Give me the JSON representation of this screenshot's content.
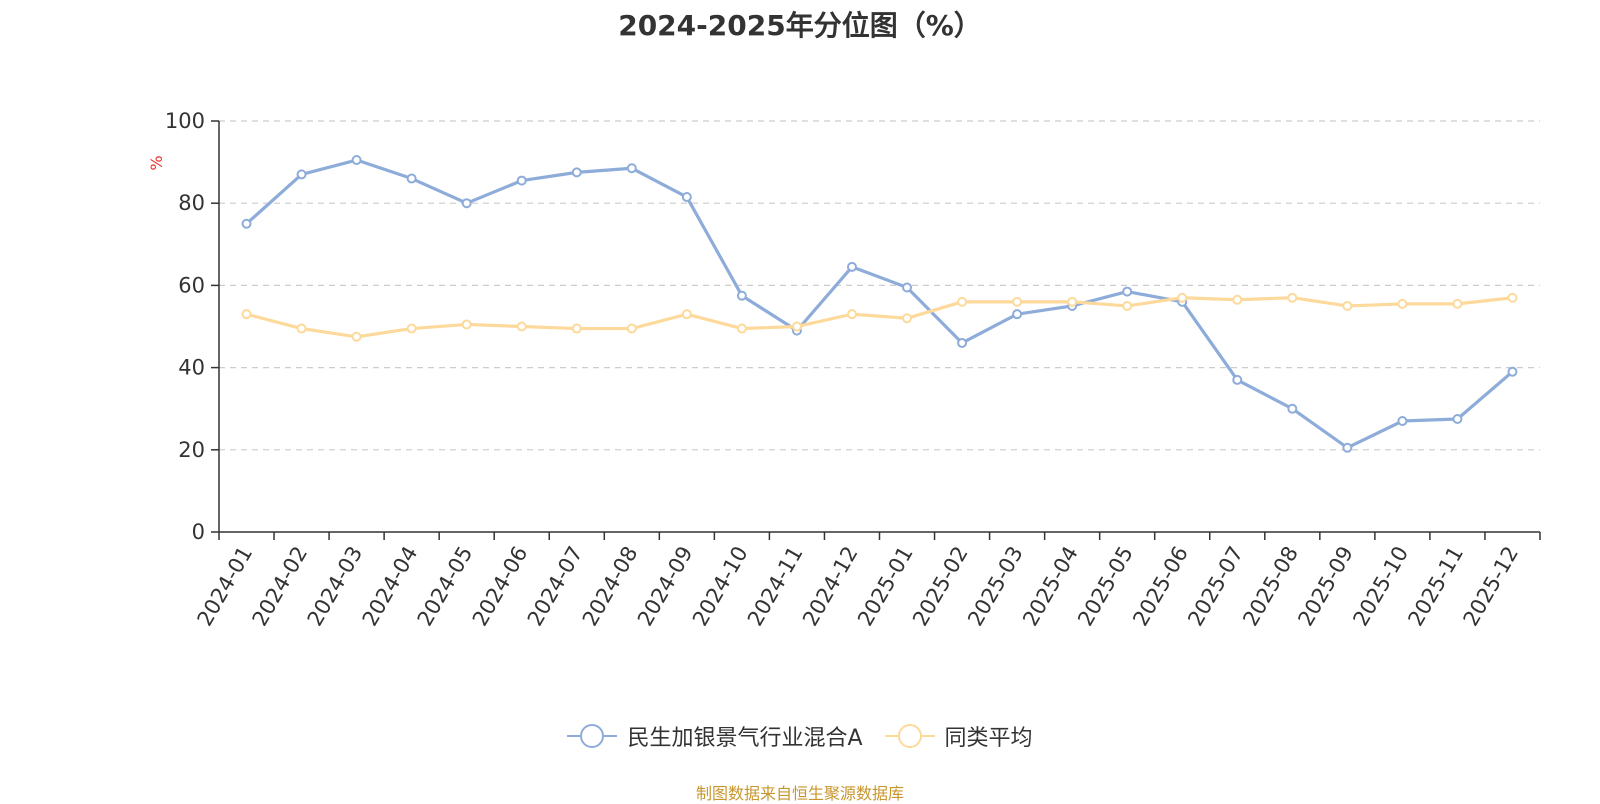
{
  "colors": {
    "series1": "#8eacda",
    "series2": "#fdd99b",
    "grid": "#cccccc",
    "axis": "#333333",
    "ylabel": "#e8332d",
    "source": "#c8962e"
  },
  "legend_icon": "circle-line-marker",
  "source_text": "制图数据来自恒生聚源数据库",
  "chart_data": {
    "type": "line",
    "title": "2024-2025年分位图（%）",
    "ylabel": "%",
    "xlabel": "",
    "ylim": [
      0,
      100
    ],
    "yticks": [
      0,
      20,
      40,
      60,
      80,
      100
    ],
    "grid": true,
    "legend_position": "bottom",
    "categories": [
      "2024-01",
      "2024-02",
      "2024-03",
      "2024-04",
      "2024-05",
      "2024-06",
      "2024-07",
      "2024-08",
      "2024-09",
      "2024-10",
      "2024-11",
      "2024-12",
      "2025-01",
      "2025-02",
      "2025-03",
      "2025-04",
      "2025-05",
      "2025-06",
      "2025-07",
      "2025-08",
      "2025-09",
      "2025-10",
      "2025-11",
      "2025-12"
    ],
    "series": [
      {
        "name": "民生加银景气行业混合A",
        "values": [
          75,
          87,
          90.5,
          86,
          80,
          85.5,
          87.5,
          88.5,
          81.5,
          57.5,
          49,
          64.5,
          59.5,
          46,
          53,
          55,
          58.5,
          56,
          37,
          30,
          20.5,
          27,
          27.5,
          39
        ]
      },
      {
        "name": "同类平均",
        "values": [
          53,
          49.5,
          47.5,
          49.5,
          50.5,
          50,
          49.5,
          49.5,
          53,
          49.5,
          50,
          53,
          52,
          56,
          56,
          56,
          55,
          57,
          56.5,
          57,
          55,
          55.5,
          55.5,
          57
        ]
      }
    ]
  }
}
